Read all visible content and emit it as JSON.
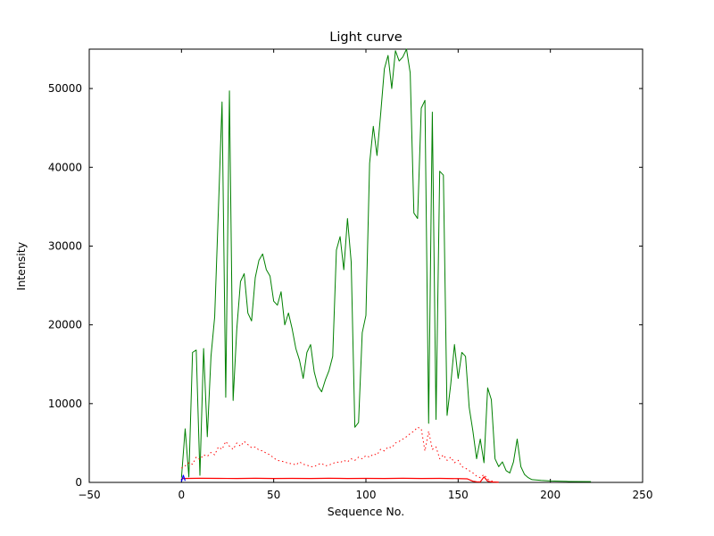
{
  "chart_data": {
    "type": "line",
    "title": "Light curve",
    "xlabel": "Sequence No.",
    "ylabel": "Intensity",
    "xlim": [
      -50,
      250
    ],
    "ylim": [
      0,
      55000
    ],
    "x_ticks": [
      -50,
      0,
      50,
      100,
      150,
      200,
      250
    ],
    "y_ticks": [
      0,
      10000,
      20000,
      30000,
      40000,
      50000
    ],
    "grid": false,
    "legend": "none",
    "frame_color": "#000000",
    "background": "#ffffff",
    "series": [
      {
        "name": "intensity-main",
        "color": "#008000",
        "style": "solid",
        "width": 1,
        "x": [
          0,
          2,
          4,
          6,
          8,
          10,
          12,
          14,
          16,
          18,
          20,
          22,
          24,
          26,
          28,
          30,
          32,
          34,
          36,
          38,
          40,
          42,
          44,
          46,
          48,
          50,
          52,
          54,
          56,
          58,
          60,
          62,
          64,
          66,
          68,
          70,
          72,
          74,
          76,
          78,
          80,
          82,
          84,
          86,
          88,
          90,
          92,
          94,
          96,
          98,
          100,
          102,
          104,
          106,
          108,
          110,
          112,
          114,
          116,
          118,
          120,
          122,
          124,
          126,
          128,
          130,
          132,
          134,
          136,
          138,
          140,
          142,
          144,
          146,
          148,
          150,
          152,
          154,
          156,
          158,
          160,
          162,
          164,
          166,
          168,
          170,
          172,
          174,
          176,
          178,
          180,
          182,
          184,
          186,
          188,
          190,
          195,
          200,
          210,
          222
        ],
        "y": [
          600,
          6800,
          700,
          16500,
          16800,
          900,
          17000,
          5800,
          16000,
          21000,
          34500,
          48300,
          10800,
          49700,
          10400,
          19500,
          25500,
          26500,
          21500,
          20500,
          26000,
          28200,
          29000,
          27000,
          26200,
          23000,
          22500,
          24200,
          20000,
          21500,
          19500,
          17000,
          15500,
          13200,
          16500,
          17500,
          14000,
          12200,
          11500,
          13000,
          14200,
          16000,
          29500,
          31200,
          27000,
          33500,
          28000,
          7000,
          7600,
          19000,
          21200,
          40500,
          45200,
          41500,
          46800,
          52500,
          54200,
          50000,
          54800,
          53500,
          54000,
          55000,
          52000,
          34200,
          33500,
          47500,
          48500,
          7500,
          47000,
          8000,
          39500,
          39000,
          8500,
          12500,
          17500,
          13200,
          16500,
          16000,
          9500,
          6500,
          3000,
          5500,
          2500,
          12000,
          10500,
          3000,
          2000,
          2600,
          1500,
          1200,
          2600,
          5500,
          2000,
          1000,
          600,
          350,
          250,
          180,
          120,
          100
        ]
      },
      {
        "name": "intensity-secondary-dotted",
        "color": "#ff0000",
        "style": "dotted",
        "width": 1,
        "x": [
          0,
          2,
          4,
          6,
          8,
          10,
          12,
          14,
          16,
          18,
          20,
          22,
          24,
          26,
          28,
          30,
          32,
          34,
          36,
          38,
          40,
          42,
          44,
          46,
          48,
          50,
          52,
          54,
          56,
          58,
          60,
          62,
          64,
          66,
          68,
          70,
          72,
          74,
          76,
          78,
          80,
          82,
          84,
          86,
          88,
          90,
          92,
          94,
          96,
          98,
          100,
          102,
          104,
          106,
          108,
          110,
          112,
          114,
          116,
          118,
          120,
          122,
          124,
          126,
          128,
          130,
          132,
          134,
          136,
          138,
          140,
          142,
          144,
          146,
          148,
          150,
          152,
          154,
          156,
          158,
          160,
          162,
          164,
          166,
          168,
          170
        ],
        "y": [
          1800,
          2100,
          2500,
          2300,
          3200,
          2900,
          3500,
          3300,
          3800,
          3500,
          4500,
          4200,
          5200,
          4600,
          4200,
          5000,
          4600,
          5200,
          4800,
          4400,
          4500,
          4100,
          4000,
          3700,
          3500,
          3100,
          2800,
          2700,
          2600,
          2400,
          2400,
          2200,
          2600,
          2300,
          2200,
          2000,
          2000,
          2300,
          2400,
          2100,
          2200,
          2400,
          2600,
          2500,
          2800,
          2600,
          3000,
          2800,
          3200,
          3000,
          3400,
          3200,
          3600,
          3500,
          4200,
          4000,
          4500,
          4400,
          5000,
          5200,
          5500,
          5800,
          6200,
          6500,
          7000,
          6800,
          4000,
          6500,
          4200,
          4500,
          3000,
          3500,
          2800,
          3200,
          2500,
          2800,
          2000,
          1800,
          1500,
          1200,
          800,
          600,
          1000,
          400,
          200,
          100
        ]
      },
      {
        "name": "baseline-solid",
        "color": "#ff0000",
        "style": "solid",
        "width": 1.2,
        "x": [
          0,
          10,
          20,
          30,
          40,
          50,
          60,
          70,
          80,
          90,
          100,
          110,
          120,
          130,
          140,
          150,
          155,
          158,
          160,
          162,
          164,
          166,
          168,
          170,
          172
        ],
        "y": [
          500,
          520,
          510,
          500,
          520,
          500,
          510,
          500,
          520,
          500,
          510,
          500,
          520,
          500,
          510,
          480,
          450,
          150,
          80,
          60,
          700,
          150,
          60,
          40,
          30
        ]
      },
      {
        "name": "origin-marker",
        "color": "#0000ff",
        "style": "solid",
        "width": 1.2,
        "x": [
          0,
          1,
          2
        ],
        "y": [
          100,
          900,
          200
        ]
      }
    ]
  }
}
